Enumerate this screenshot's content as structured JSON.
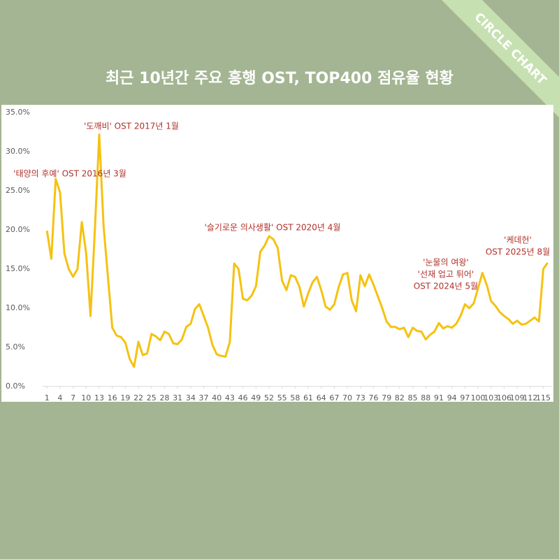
{
  "chart_data": {
    "type": "line",
    "title": "최근 10년간 주요 흥행 OST, TOP400 점유율 현황",
    "watermark": "CIRCLE CHART",
    "color": "#f5c211",
    "x": [
      1,
      2,
      3,
      4,
      5,
      6,
      7,
      8,
      9,
      10,
      11,
      12,
      13,
      14,
      15,
      16,
      17,
      18,
      19,
      20,
      21,
      22,
      23,
      24,
      25,
      26,
      27,
      28,
      29,
      30,
      31,
      32,
      33,
      34,
      35,
      36,
      37,
      38,
      39,
      40,
      41,
      42,
      43,
      44,
      45,
      46,
      47,
      48,
      49,
      50,
      51,
      52,
      53,
      54,
      55,
      56,
      57,
      58,
      59,
      60,
      61,
      62,
      63,
      64,
      65,
      66,
      67,
      68,
      69,
      70,
      71,
      72,
      73,
      74,
      75,
      76,
      77,
      78,
      79,
      80,
      81,
      82,
      83,
      84,
      85,
      86,
      87,
      88,
      89,
      90,
      91,
      92,
      93,
      94,
      95,
      96,
      97,
      98,
      99,
      100,
      101,
      102,
      103,
      104,
      105,
      106,
      107,
      108,
      109,
      110,
      111,
      112,
      113,
      114,
      115,
      116
    ],
    "values": [
      19.9,
      16.3,
      26.5,
      24.8,
      17.0,
      15.0,
      14.0,
      15.0,
      21.0,
      17.0,
      9.0,
      20.0,
      32.2,
      20.5,
      14.0,
      7.5,
      6.5,
      6.3,
      5.6,
      3.5,
      2.5,
      5.7,
      4.0,
      4.2,
      6.7,
      6.4,
      5.9,
      7.0,
      6.7,
      5.5,
      5.4,
      6.0,
      7.6,
      8.0,
      9.9,
      10.5,
      9.0,
      7.5,
      5.3,
      4.1,
      3.9,
      3.8,
      5.7,
      15.7,
      15.0,
      11.2,
      11.0,
      11.6,
      12.8,
      17.2,
      18.0,
      19.2,
      18.8,
      17.7,
      13.5,
      12.3,
      14.2,
      14.0,
      12.7,
      10.2,
      11.9,
      13.3,
      14.0,
      12.3,
      10.2,
      9.8,
      10.5,
      12.7,
      14.3,
      14.5,
      11.0,
      9.6,
      14.2,
      12.8,
      14.3,
      13.0,
      11.5,
      10.0,
      8.3,
      7.6,
      7.6,
      7.3,
      7.5,
      6.3,
      7.5,
      7.1,
      7.0,
      6.0,
      6.6,
      7.0,
      8.1,
      7.4,
      7.7,
      7.5,
      8.0,
      9.0,
      10.5,
      10.0,
      10.6,
      12.5,
      14.5,
      13.0,
      10.9,
      10.3,
      9.5,
      9.0,
      8.6,
      8.0,
      8.4,
      7.9,
      8.0,
      8.4,
      8.8,
      8.3,
      15.0,
      15.8
    ],
    "xlim": [
      0,
      117
    ],
    "xticks": [
      1,
      4,
      7,
      10,
      13,
      16,
      19,
      22,
      25,
      28,
      31,
      34,
      37,
      40,
      43,
      46,
      49,
      52,
      55,
      58,
      61,
      64,
      67,
      70,
      73,
      76,
      79,
      82,
      85,
      88,
      91,
      94,
      97,
      100,
      103,
      106,
      109,
      112,
      115
    ],
    "ylim": [
      0,
      35
    ],
    "yticks": [
      {
        "value": 0,
        "label": "0.0%"
      },
      {
        "value": 5,
        "label": "5.0%"
      },
      {
        "value": 10,
        "label": "10.0%"
      },
      {
        "value": 15,
        "label": "15.0%"
      },
      {
        "value": 20,
        "label": "20.0%"
      },
      {
        "value": 25,
        "label": "25.0%"
      },
      {
        "value": 30,
        "label": "30.0%"
      },
      {
        "value": 35,
        "label": "35.0%"
      }
    ],
    "grid": false,
    "annotations": [
      {
        "lines": [
          "'도깨비' OST 2017년 1월"
        ]
      },
      {
        "lines": [
          "'태양의 후예' OST 2016년 3월"
        ]
      },
      {
        "lines": [
          "'슬기로운 의사생활' OST 2020년 4월"
        ]
      },
      {
        "lines": [
          "'눈물의 여왕'",
          "'선재 업고 튀어'",
          "OST 2024년 5월"
        ]
      },
      {
        "lines": [
          "'케데헌'",
          "OST 2025년 8월"
        ]
      }
    ]
  }
}
